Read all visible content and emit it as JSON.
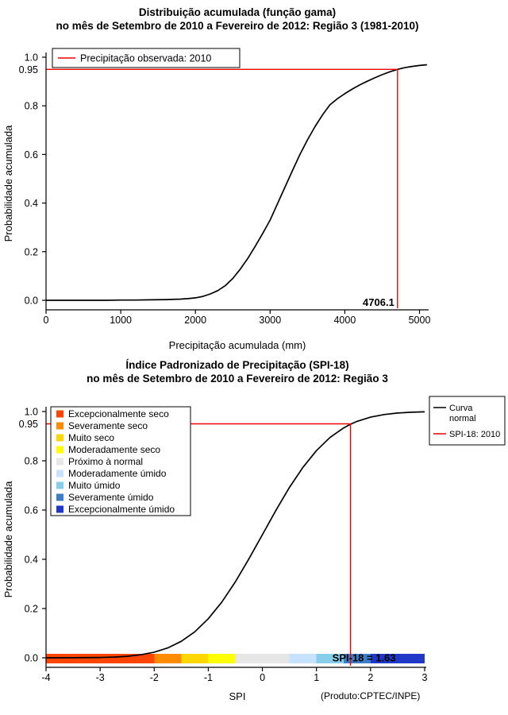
{
  "chart_data": [
    {
      "type": "line",
      "title": "Distribuição acumulada (função gama)",
      "title_line2": "no mês de Setembro de 2010 a Fevereiro de 2012: Região 3 (1981-2010)",
      "xlabel": "Precipitação acumulada (mm)",
      "ylabel": "Probabilidade acumulada",
      "xlim": [
        0,
        5100
      ],
      "ylim": [
        0,
        1
      ],
      "xticks": [
        0,
        1000,
        2000,
        3000,
        4000,
        5000
      ],
      "yticks": [
        0,
        0.2,
        0.4,
        0.6,
        0.8,
        1
      ],
      "ytick_labels": [
        "0.0",
        "0.2",
        "0.4",
        "0.6",
        "0.8",
        "1.0"
      ],
      "extra_ytick": {
        "value": 0.95,
        "label": "0.95"
      },
      "grid": false,
      "legend": {
        "position": "top-left",
        "items": [
          {
            "label": "Precipitação observada: 2010",
            "color": "#EE0000",
            "type": "line"
          }
        ]
      },
      "annotation": {
        "x": 4706.1,
        "y": 0.95,
        "label": "4706.1",
        "line_color": "#EE0000",
        "label_color": "#000000"
      },
      "series": [
        {
          "name": "Distribuição gama acumulada",
          "color": "#000000",
          "x": [
            0,
            200,
            400,
            600,
            800,
            1000,
            1200,
            1400,
            1600,
            1800,
            1900,
            2000,
            2100,
            2200,
            2300,
            2400,
            2500,
            2600,
            2700,
            2800,
            2900,
            3000,
            3100,
            3200,
            3300,
            3400,
            3500,
            3600,
            3700,
            3800,
            3900,
            4000,
            4100,
            4200,
            4300,
            4400,
            4500,
            4600,
            4706.1,
            4800,
            4900,
            5000,
            5100
          ],
          "y": [
            0,
            0,
            0,
            0,
            0,
            0.001,
            0.001,
            0.002,
            0.003,
            0.005,
            0.007,
            0.01,
            0.016,
            0.026,
            0.04,
            0.06,
            0.09,
            0.128,
            0.172,
            0.222,
            0.275,
            0.33,
            0.398,
            0.466,
            0.534,
            0.6,
            0.66,
            0.714,
            0.762,
            0.804,
            0.829,
            0.85,
            0.869,
            0.886,
            0.901,
            0.915,
            0.928,
            0.94,
            0.95,
            0.957,
            0.962,
            0.966,
            0.969
          ]
        }
      ]
    },
    {
      "type": "line",
      "title": "Índice Padronizado de Precipitação (SPI-18)",
      "title_line2": "no mês de Setembro de 2010 a Fevereiro de 2012: Região 3",
      "xlabel": "SPI",
      "ylabel": "Probabilidade acumulada",
      "note": "(Produto:CPTEC/INPE)",
      "xlim": [
        -4,
        3
      ],
      "ylim": [
        0,
        1
      ],
      "xticks": [
        -4,
        -3,
        -2,
        -1,
        0,
        1,
        2,
        3
      ],
      "yticks": [
        0,
        0.2,
        0.4,
        0.6,
        0.8,
        1
      ],
      "ytick_labels": [
        "0.0",
        "0.2",
        "0.4",
        "0.6",
        "0.8",
        "1.0"
      ],
      "extra_ytick": {
        "value": 0.95,
        "label": "0.95"
      },
      "grid": false,
      "legend_right": {
        "items": [
          {
            "label": "Curva normal",
            "label_lines": [
              "Curva",
              "normal"
            ],
            "color": "#000000"
          },
          {
            "label": "SPI-18: 2010",
            "label_lines": [
              "SPI-18: 2010"
            ],
            "color": "#EE0000"
          }
        ]
      },
      "category_legend": {
        "items": [
          {
            "label": "Excepcionalmente seco",
            "color": "#FF4500"
          },
          {
            "label": "Severamente seco",
            "color": "#FF8C00"
          },
          {
            "label": "Muito seco",
            "color": "#FFD700"
          },
          {
            "label": "Moderadamente seco",
            "color": "#FFFF00"
          },
          {
            "label": "Próximo à normal",
            "color": "#E6E6E6"
          },
          {
            "label": "Moderadamente úmido",
            "color": "#C6E2FF"
          },
          {
            "label": "Muito úmido",
            "color": "#87CEEB"
          },
          {
            "label": "Severamente úmido",
            "color": "#3E7EC8"
          },
          {
            "label": "Excepcionalmente úmido",
            "color": "#2038C8"
          }
        ]
      },
      "category_bar": {
        "breaks": [
          -4,
          -2,
          -1.5,
          -1,
          -0.5,
          0.5,
          1,
          1.5,
          2,
          3
        ]
      },
      "annotation": {
        "x": 1.63,
        "y": 0.95,
        "label": "SPI-18 = 1.63",
        "line_color": "#EE0000",
        "label_color": "#00008B"
      },
      "series": [
        {
          "name": "Curva normal",
          "color": "#000000",
          "x": [
            -4,
            -3.5,
            -3,
            -2.75,
            -2.5,
            -2.25,
            -2,
            -1.75,
            -1.5,
            -1.25,
            -1,
            -0.75,
            -0.5,
            -0.25,
            0,
            0.25,
            0.5,
            0.75,
            1,
            1.25,
            1.5,
            1.63,
            1.75,
            2,
            2.25,
            2.5,
            2.75,
            3
          ],
          "y": [
            0.0,
            0.0002,
            0.0013,
            0.003,
            0.0062,
            0.0122,
            0.0228,
            0.0401,
            0.0668,
            0.1056,
            0.1587,
            0.2266,
            0.3085,
            0.4013,
            0.5,
            0.5987,
            0.6915,
            0.7734,
            0.8413,
            0.8944,
            0.9332,
            0.9484,
            0.9599,
            0.9772,
            0.9878,
            0.9938,
            0.997,
            0.9987
          ]
        }
      ]
    }
  ]
}
